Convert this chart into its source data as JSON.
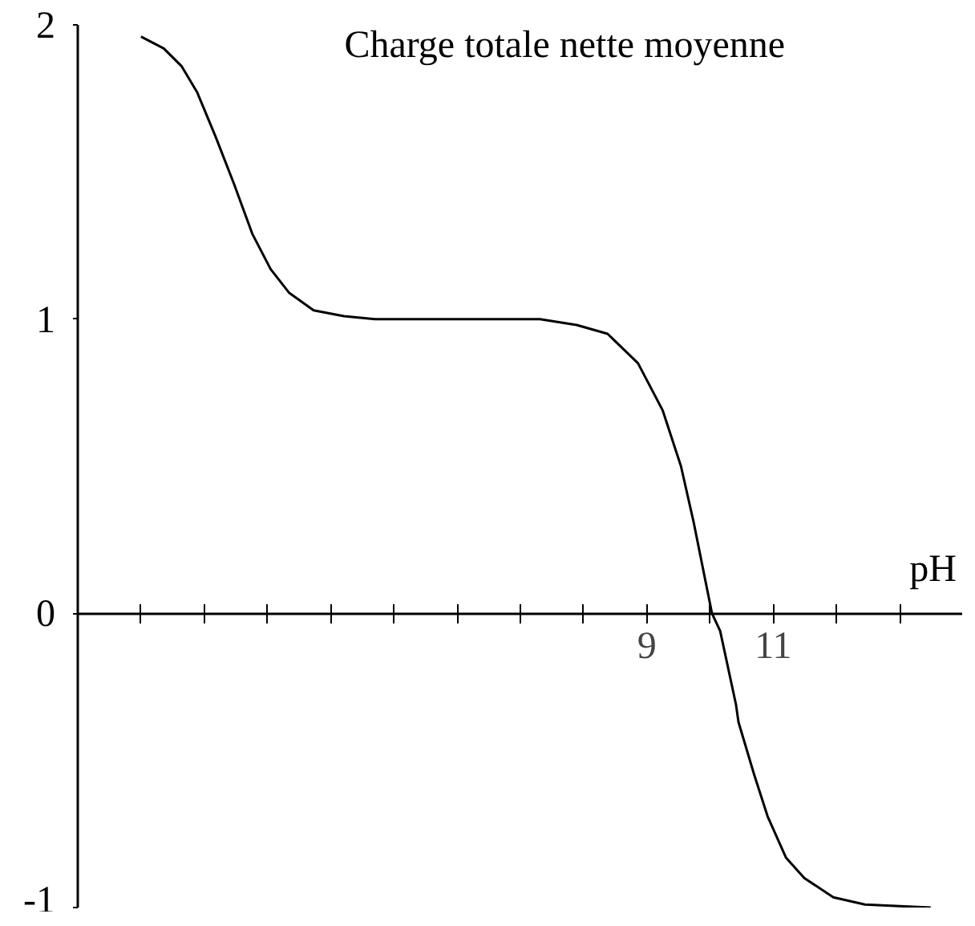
{
  "chart_data": {
    "type": "line",
    "title": "Charge totale nette moyenne",
    "xlabel": "pH",
    "x": [
      1.0,
      1.36,
      1.64,
      1.89,
      2.18,
      2.47,
      2.76,
      3.05,
      3.34,
      3.73,
      4.21,
      4.7,
      7.31,
      7.89,
      8.38,
      8.86,
      9.25,
      9.54,
      9.74,
      10.03,
      10.16,
      10.41,
      10.45,
      10.7,
      10.91,
      11.2,
      11.49,
      11.95,
      12.45,
      13.49
    ],
    "series": [
      {
        "color": "#000000",
        "values": [
          1.96,
          1.92,
          1.86,
          1.77,
          1.62,
          1.46,
          1.29,
          1.17,
          1.09,
          1.03,
          1.01,
          1.0,
          1.0,
          0.98,
          0.95,
          0.85,
          0.69,
          0.5,
          0.31,
          0.0,
          -0.06,
          -0.31,
          -0.37,
          -0.55,
          -0.69,
          -0.83,
          -0.9,
          -0.965,
          -0.99,
          -1.0
        ]
      }
    ],
    "xlim": [
      0,
      14
    ],
    "ylim": [
      -1,
      2
    ],
    "xticks": [
      {
        "value": 1,
        "label": null
      },
      {
        "value": 2,
        "label": null
      },
      {
        "value": 3,
        "label": null
      },
      {
        "value": 4,
        "label": null
      },
      {
        "value": 5,
        "label": null
      },
      {
        "value": 6,
        "label": null
      },
      {
        "value": 7,
        "label": null
      },
      {
        "value": 8,
        "label": null
      },
      {
        "value": 9,
        "label": "9"
      },
      {
        "value": 10,
        "label": null
      },
      {
        "value": 11,
        "label": "11"
      },
      {
        "value": 12,
        "label": null
      },
      {
        "value": 13,
        "label": null
      }
    ],
    "yticks": [
      {
        "value": -1,
        "label": "-1"
      },
      {
        "value": 0,
        "label": "0"
      },
      {
        "value": 1,
        "label": "1"
      },
      {
        "value": 2,
        "label": "2"
      }
    ],
    "marker": "none",
    "line_style": "solid"
  }
}
